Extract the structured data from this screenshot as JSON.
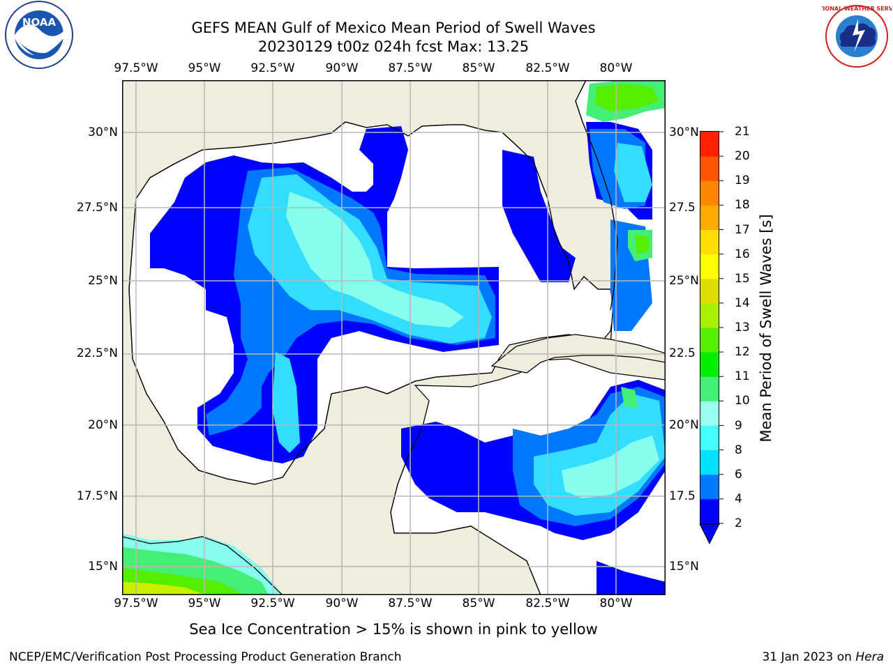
{
  "title": {
    "line1": "GEFS MEAN Gulf of Mexico Mean Period of Swell Waves",
    "line2": "20230129 t00z 024h fcst   Max: 13.25"
  },
  "axes": {
    "lon_labels": [
      "97.5°W",
      "95°W",
      "92.5°W",
      "90°W",
      "87.5°W",
      "85°W",
      "82.5°W",
      "80°W"
    ],
    "lat_labels_left": [
      "30°N",
      "27.5°N",
      "25°N",
      "22.5°N",
      "20°N",
      "17.5°N",
      "15°N"
    ],
    "lat_labels_right": [
      "30°N",
      "27.5",
      "25°N",
      "22.5",
      "20°N",
      "17.5",
      "15°N"
    ],
    "lon_values": [
      -97.5,
      -95,
      -92.5,
      -90,
      -87.5,
      -85,
      -82.5,
      -80
    ],
    "lat_values": [
      30,
      27.5,
      25,
      22.5,
      20,
      17.5,
      15
    ],
    "lon_range": [
      -98,
      -78.2
    ],
    "lat_range": [
      14,
      31.8
    ],
    "gridlines": true
  },
  "colorbar": {
    "label": "Mean Period of Swell Waves [s]",
    "ticks": [
      "21",
      "20",
      "19",
      "18",
      "17",
      "16",
      "15",
      "14",
      "13",
      "12",
      "11",
      "10",
      "9",
      "8",
      "6",
      "4",
      "2"
    ],
    "levels": [
      2,
      4,
      6,
      8,
      9,
      10,
      11,
      12,
      13,
      14,
      15,
      16,
      17,
      18,
      19,
      20,
      21
    ],
    "colors": [
      "#0000ff",
      "#0077ff",
      "#00e0ff",
      "#44ffff",
      "#99ffee",
      "#44ee77",
      "#00ee00",
      "#55ee00",
      "#aaee00",
      "#dddd00",
      "#ffff00",
      "#ffdd00",
      "#ffaa00",
      "#ff8800",
      "#ff5500",
      "#ff2200",
      "#ff0000"
    ],
    "extend": "min"
  },
  "footnote": "Sea Ice Concentration > 15% is shown in pink to yellow",
  "credit": "NCEP/EMC/Verification Post Processing Product Generation Branch",
  "date": {
    "text": "31 Jan 2023 on ",
    "host": "Hera"
  },
  "logos": {
    "left": "NOAA",
    "right": "NATIONAL WEATHER SERVICE"
  },
  "colors": {
    "land": "#efedde",
    "ocean": "#ffffff",
    "grid": "#b8b8b8"
  }
}
